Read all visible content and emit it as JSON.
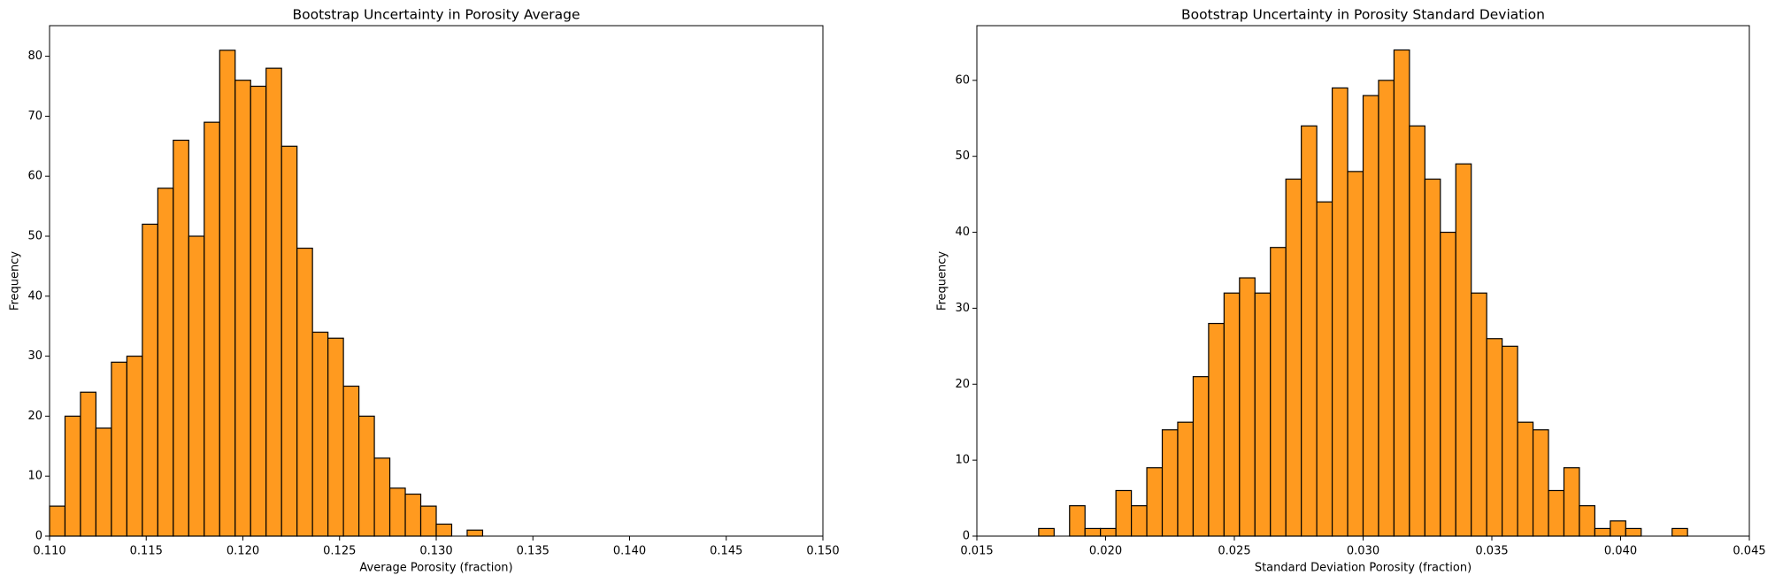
{
  "chart_data": [
    {
      "type": "histogram",
      "title": "Bootstrap Uncertainty in Porosity Average",
      "x_label": "Average Porosity (fraction)",
      "y_label": "Frequency",
      "bins": [
        0.11,
        0.1108,
        0.1116,
        0.1124,
        0.1132,
        0.114,
        0.1148,
        0.1156,
        0.1164,
        0.1172,
        0.118,
        0.1188,
        0.1196,
        0.1204,
        0.1212,
        0.122,
        0.1228,
        0.1236,
        0.1244,
        0.1252,
        0.126,
        0.1268,
        0.1276,
        0.1284,
        0.1292,
        0.13,
        0.1308,
        0.1316,
        0.1324
      ],
      "values": [
        5,
        20,
        24,
        18,
        29,
        30,
        52,
        58,
        66,
        50,
        69,
        81,
        76,
        75,
        78,
        65,
        48,
        34,
        33,
        25,
        20,
        13,
        8,
        7,
        5,
        2,
        0,
        1
      ],
      "color": "#ff9a1f",
      "edgecolor": "#000000",
      "xlim": [
        0.11,
        0.15
      ],
      "xticks": [
        {
          "value": 0.11,
          "label": "0.110"
        },
        {
          "value": 0.115,
          "label": "0.115"
        },
        {
          "value": 0.12,
          "label": "0.120"
        },
        {
          "value": 0.125,
          "label": "0.125"
        },
        {
          "value": 0.13,
          "label": "0.130"
        },
        {
          "value": 0.135,
          "label": "0.135"
        },
        {
          "value": 0.14,
          "label": "0.140"
        },
        {
          "value": 0.145,
          "label": "0.145"
        },
        {
          "value": 0.15,
          "label": "0.150"
        }
      ],
      "ylim": [
        0,
        85.1
      ],
      "yticks": [
        0,
        10,
        20,
        30,
        40,
        50,
        60,
        70,
        80
      ]
    },
    {
      "type": "histogram",
      "title": "Bootstrap Uncertainty in Porosity Standard Deviation",
      "x_label": "Standard Deviation Porosity (fraction)",
      "y_label": "Frequency",
      "bins": [
        0.0174,
        0.018,
        0.0186,
        0.0192,
        0.0198,
        0.0204,
        0.021,
        0.0216,
        0.0222,
        0.0228,
        0.0234,
        0.024,
        0.0246,
        0.0252,
        0.0258,
        0.0264,
        0.027,
        0.0276,
        0.0282,
        0.0288,
        0.0294,
        0.03,
        0.0306,
        0.0312,
        0.0318,
        0.0324,
        0.033,
        0.0336,
        0.0342,
        0.0348,
        0.0354,
        0.036,
        0.0366,
        0.0372,
        0.0378,
        0.0384,
        0.039,
        0.0396,
        0.0402,
        0.0408,
        0.0414,
        0.042,
        0.0426
      ],
      "values": [
        1,
        0,
        4,
        1,
        1,
        6,
        4,
        9,
        14,
        15,
        21,
        28,
        32,
        34,
        32,
        38,
        47,
        54,
        44,
        59,
        48,
        58,
        60,
        64,
        54,
        47,
        40,
        49,
        32,
        26,
        25,
        15,
        14,
        6,
        9,
        4,
        1,
        2,
        1,
        0,
        0,
        1
      ],
      "color": "#ff9a1f",
      "edgecolor": "#000000",
      "xlim": [
        0.015,
        0.045
      ],
      "xticks": [
        {
          "value": 0.015,
          "label": "0.015"
        },
        {
          "value": 0.02,
          "label": "0.020"
        },
        {
          "value": 0.025,
          "label": "0.025"
        },
        {
          "value": 0.03,
          "label": "0.030"
        },
        {
          "value": 0.035,
          "label": "0.035"
        },
        {
          "value": 0.04,
          "label": "0.040"
        },
        {
          "value": 0.045,
          "label": "0.045"
        }
      ],
      "ylim": [
        0,
        67.2
      ],
      "yticks": [
        0,
        10,
        20,
        30,
        40,
        50,
        60
      ]
    }
  ]
}
